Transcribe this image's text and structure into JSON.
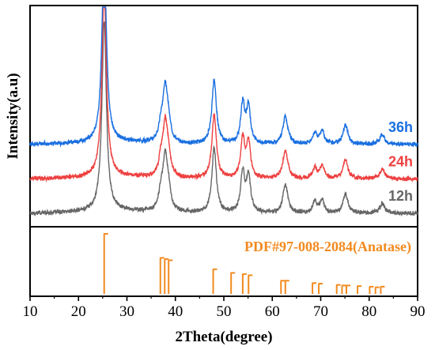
{
  "chart_data": {
    "type": "line",
    "xlabel": "2Theta(degree)",
    "ylabel": "Intensity(a.u)",
    "xlim": [
      10,
      90
    ],
    "x_ticks": [
      "10",
      "20",
      "30",
      "40",
      "50",
      "60",
      "70",
      "80",
      "90"
    ],
    "grid": false,
    "legend": "inline labels at right end of each trace",
    "peaks": [
      {
        "x": 25.3,
        "h": 1.0,
        "w": 0.55
      },
      {
        "x": 37.0,
        "h": 0.08,
        "w": 0.5
      },
      {
        "x": 37.9,
        "h": 0.28,
        "w": 0.6
      },
      {
        "x": 38.6,
        "h": 0.08,
        "w": 0.5
      },
      {
        "x": 48.0,
        "h": 0.34,
        "w": 0.55
      },
      {
        "x": 53.9,
        "h": 0.21,
        "w": 0.5
      },
      {
        "x": 55.1,
        "h": 0.19,
        "w": 0.5
      },
      {
        "x": 62.7,
        "h": 0.15,
        "w": 0.6
      },
      {
        "x": 68.8,
        "h": 0.06,
        "w": 0.5
      },
      {
        "x": 70.3,
        "h": 0.07,
        "w": 0.5
      },
      {
        "x": 75.1,
        "h": 0.1,
        "w": 0.6
      },
      {
        "x": 82.7,
        "h": 0.05,
        "w": 0.6
      }
    ],
    "series": [
      {
        "name": "12h",
        "color": "#666666",
        "offset": 0,
        "scale": 1.0
      },
      {
        "name": "24h",
        "color": "#ee4040",
        "offset": 0.18,
        "scale": 0.98
      },
      {
        "name": "36h",
        "color": "#1a6fe0",
        "offset": 0.36,
        "scale": 0.99
      }
    ],
    "reference": {
      "label": "PDF#97-008-2084(Anatase)",
      "color": "#f28a1f",
      "lines": [
        {
          "x": 25.3,
          "h": 1.0
        },
        {
          "x": 36.9,
          "h": 0.6
        },
        {
          "x": 37.8,
          "h": 0.58
        },
        {
          "x": 38.6,
          "h": 0.56
        },
        {
          "x": 47.8,
          "h": 0.41
        },
        {
          "x": 51.5,
          "h": 0.35
        },
        {
          "x": 53.9,
          "h": 0.33
        },
        {
          "x": 55.1,
          "h": 0.31
        },
        {
          "x": 61.8,
          "h": 0.22
        },
        {
          "x": 62.7,
          "h": 0.22
        },
        {
          "x": 68.3,
          "h": 0.18
        },
        {
          "x": 69.6,
          "h": 0.17
        },
        {
          "x": 73.3,
          "h": 0.15
        },
        {
          "x": 74.4,
          "h": 0.14
        },
        {
          "x": 75.3,
          "h": 0.14
        },
        {
          "x": 77.6,
          "h": 0.13
        },
        {
          "x": 80.1,
          "h": 0.12
        },
        {
          "x": 81.3,
          "h": 0.11
        },
        {
          "x": 82.4,
          "h": 0.12
        }
      ]
    }
  }
}
